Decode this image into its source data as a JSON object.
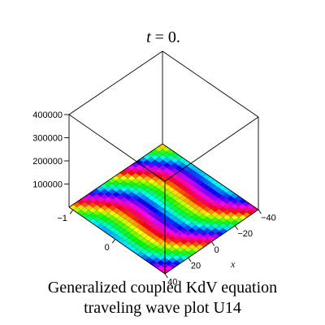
{
  "chart_data": {
    "type": "surface",
    "title_prefix": "t",
    "title_value": "= 0.",
    "xlabel": "x",
    "ylabel": "",
    "zlabel": "",
    "x_tick_labels": [
      "-40",
      "-20",
      "0",
      "20",
      "40"
    ],
    "y_tick_labels": [
      "-1",
      "0"
    ],
    "z_tick_labels": [
      "100000",
      "200000",
      "300000",
      "400000"
    ],
    "x_range": [
      -40,
      40
    ],
    "y_range": [
      -1,
      1
    ],
    "z_range": [
      0,
      400000
    ],
    "surface_values": "approximately flat near 0 across the shown domain; colored by a periodic hue pattern",
    "colormap": "rainbow-hue (red, yellow, green, cyan, blue, magenta)",
    "grid_mesh": true,
    "box": true
  },
  "caption": {
    "line1": "Generalized coupled KdV equation",
    "line2": "traveling wave plot U14"
  }
}
